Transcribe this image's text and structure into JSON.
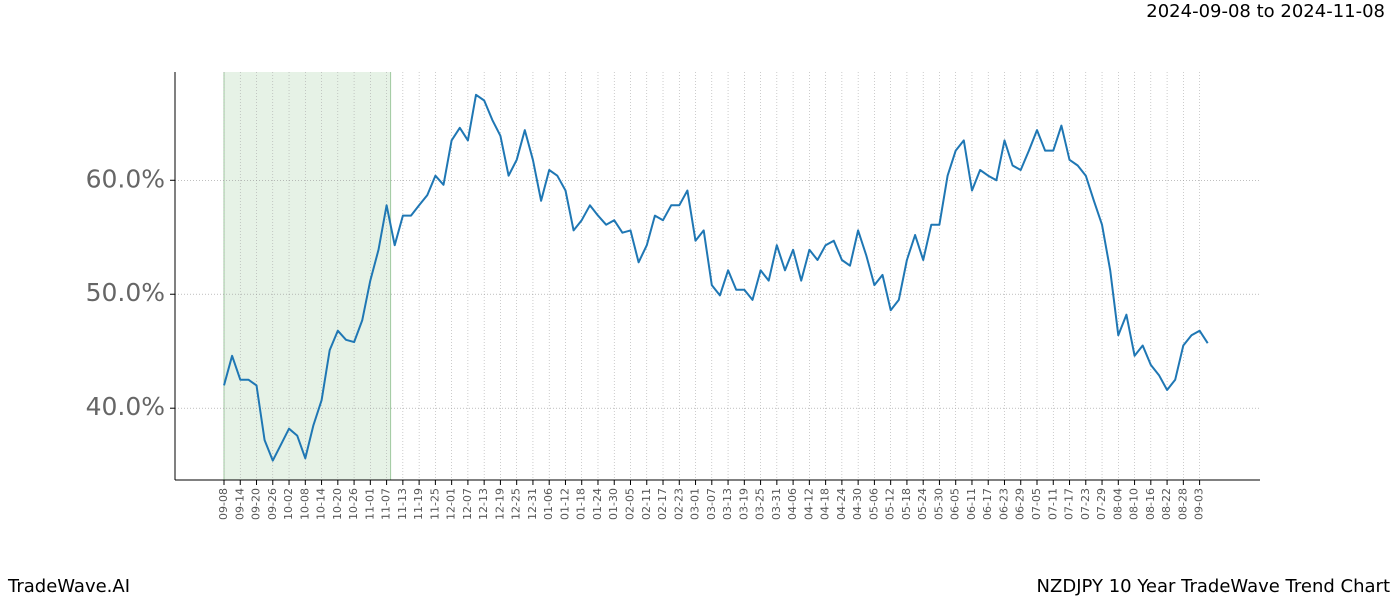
{
  "chart_data": {
    "type": "line",
    "title": "NZDJPY 10 Year TradeWave Trend Chart",
    "subtitle": "2024-09-08 to 2024-11-08",
    "brand": "TradeWave.AI",
    "categories": [
      "09-08",
      null,
      "09-14",
      null,
      "09-20",
      null,
      "09-26",
      null,
      "10-02",
      null,
      "10-08",
      null,
      "10-14",
      null,
      "10-20",
      null,
      "10-26",
      null,
      "11-01",
      null,
      "11-07",
      null,
      "11-13",
      null,
      "11-19",
      null,
      "11-25",
      null,
      "12-01",
      null,
      "12-07",
      null,
      "12-13",
      null,
      "12-19",
      null,
      "12-25",
      null,
      "12-31",
      null,
      "01-06",
      null,
      "01-12",
      null,
      "01-18",
      null,
      "01-24",
      null,
      "01-30",
      null,
      "02-05",
      null,
      "02-11",
      null,
      "02-17",
      null,
      "02-23",
      null,
      "03-01",
      null,
      "03-07",
      null,
      "03-13",
      null,
      "03-19",
      null,
      "03-25",
      null,
      "03-31",
      null,
      "04-06",
      null,
      "04-12",
      null,
      "04-18",
      null,
      "04-24",
      null,
      "04-30",
      null,
      "05-06",
      null,
      "05-12",
      null,
      "05-18",
      null,
      "05-24",
      null,
      "05-30",
      null,
      "06-05",
      null,
      "06-11",
      null,
      "06-17",
      null,
      "06-23",
      null,
      "06-29",
      null,
      "07-05",
      null,
      "07-11",
      null,
      "07-17",
      null,
      "07-23",
      null,
      "07-29",
      null,
      "08-04",
      null,
      "08-10",
      null,
      "08-16",
      null,
      "08-22",
      null,
      "08-28",
      null,
      "09-03",
      null
    ],
    "values": [
      42.0,
      44.6,
      42.5,
      42.5,
      42.0,
      37.2,
      35.4,
      36.8,
      38.2,
      37.6,
      35.6,
      38.5,
      40.7,
      45.1,
      46.8,
      46.0,
      45.8,
      47.7,
      51.2,
      53.9,
      57.8,
      54.3,
      56.9,
      56.9,
      57.8,
      58.7,
      60.4,
      59.6,
      63.5,
      64.6,
      63.5,
      67.5,
      67.0,
      65.3,
      63.9,
      60.4,
      61.8,
      64.4,
      61.8,
      58.2,
      60.9,
      60.4,
      59.1,
      55.6,
      56.5,
      57.8,
      56.9,
      56.1,
      56.5,
      55.4,
      55.6,
      52.8,
      54.3,
      56.9,
      56.5,
      57.8,
      57.8,
      59.1,
      54.7,
      55.6,
      50.8,
      49.9,
      52.1,
      50.4,
      50.4,
      49.5,
      52.1,
      51.2,
      54.3,
      52.1,
      53.9,
      51.2,
      53.9,
      53.0,
      54.3,
      54.7,
      53.0,
      52.5,
      55.6,
      53.4,
      50.8,
      51.7,
      48.6,
      49.5,
      53.0,
      55.2,
      53.0,
      56.1,
      56.1,
      60.4,
      62.6,
      63.5,
      59.1,
      60.9,
      60.4,
      60.0,
      63.5,
      61.3,
      60.9,
      62.6,
      64.4,
      62.6,
      62.6,
      64.8,
      61.8,
      61.3,
      60.4,
      58.2,
      56.1,
      52.1,
      46.4,
      48.2,
      44.6,
      45.5,
      43.8,
      42.9,
      41.6,
      42.5,
      45.5,
      46.4,
      46.8,
      45.7
    ],
    "color": "#1f77b4",
    "highlight": {
      "start": "09-08",
      "end": "11-07",
      "color": "#e6f2e6"
    },
    "ylim": [
      33.7,
      69.5
    ],
    "yticks": [
      {
        "value": 40,
        "label": "40.0%"
      },
      {
        "value": 50,
        "label": "50.0%"
      },
      {
        "value": 60,
        "label": "60.0%"
      }
    ],
    "grid": true
  }
}
